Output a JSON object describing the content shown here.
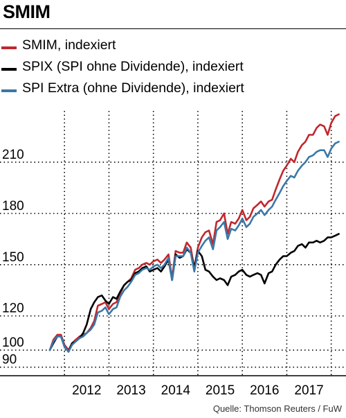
{
  "title": "SMIM",
  "source": "Quelle: Thomson Reuters / FuW",
  "colors": {
    "smim": "#c0272d",
    "spix": "#000000",
    "spi_extra": "#3a78a8",
    "grid": "#000000"
  },
  "chart_data": {
    "type": "line",
    "title": "SMIM",
    "xlabel": "",
    "ylabel": "",
    "grid": "dotted",
    "legend_position": "top",
    "xlim": [
      2011.0,
      2017.6
    ],
    "ylim": [
      85,
      240
    ],
    "x_ticks": [
      {
        "value": 2011.83,
        "label": "2012"
      },
      {
        "value": 2012.83,
        "label": "2013"
      },
      {
        "value": 2013.83,
        "label": "2014"
      },
      {
        "value": 2014.83,
        "label": "2015"
      },
      {
        "value": 2015.83,
        "label": "2016"
      },
      {
        "value": 2016.83,
        "label": "2017"
      }
    ],
    "x_gridlines": [
      2011.33,
      2012.33,
      2013.33,
      2014.33,
      2015.33,
      2016.33,
      2017.33
    ],
    "y_ticks": [
      90,
      100,
      120,
      150,
      180,
      210
    ],
    "x": [
      2011.0,
      2011.08,
      2011.17,
      2011.25,
      2011.33,
      2011.42,
      2011.5,
      2011.58,
      2011.67,
      2011.75,
      2011.83,
      2011.92,
      2012.0,
      2012.08,
      2012.17,
      2012.25,
      2012.33,
      2012.42,
      2012.5,
      2012.58,
      2012.67,
      2012.75,
      2012.83,
      2012.92,
      2013.0,
      2013.08,
      2013.17,
      2013.25,
      2013.33,
      2013.42,
      2013.5,
      2013.58,
      2013.67,
      2013.75,
      2013.83,
      2013.92,
      2014.0,
      2014.08,
      2014.17,
      2014.25,
      2014.33,
      2014.42,
      2014.5,
      2014.58,
      2014.67,
      2014.75,
      2014.83,
      2014.92,
      2015.0,
      2015.08,
      2015.17,
      2015.25,
      2015.33,
      2015.42,
      2015.5,
      2015.58,
      2015.67,
      2015.75,
      2015.83,
      2015.92,
      2016.0,
      2016.08,
      2016.17,
      2016.25,
      2016.33,
      2016.42,
      2016.5,
      2016.58,
      2016.67,
      2016.75,
      2016.83,
      2016.92,
      2017.0,
      2017.08,
      2017.17,
      2017.25,
      2017.33,
      2017.42,
      2017.5
    ],
    "series": [
      {
        "name": "SMIM, indexiert",
        "color_key": "smim",
        "values": [
          100,
          106,
          109,
          109,
          103,
          100,
          104,
          106,
          108,
          109,
          110,
          113,
          117,
          126,
          127,
          128,
          124,
          127,
          128,
          133,
          138,
          140,
          142,
          147,
          148,
          150,
          151,
          150,
          152,
          153,
          151,
          153,
          156,
          142,
          158,
          157,
          157,
          163,
          160,
          148,
          160,
          166,
          169,
          170,
          162,
          175,
          176,
          180,
          168,
          175,
          174,
          177,
          182,
          176,
          178,
          183,
          185,
          187,
          184,
          187,
          188,
          194,
          200,
          205,
          208,
          212,
          210,
          216,
          220,
          222,
          226,
          226,
          230,
          232,
          231,
          226,
          233,
          237,
          238
        ]
      },
      {
        "name": "SPIX (SPI ohne Dividende), indexiert",
        "color_key": "spix",
        "values": [
          100,
          104,
          108,
          108,
          102,
          99,
          104,
          105,
          107,
          110,
          115,
          124,
          128,
          131,
          132,
          129,
          127,
          131,
          130,
          134,
          138,
          140,
          141,
          145,
          146,
          148,
          149,
          146,
          147,
          148,
          146,
          149,
          153,
          141,
          156,
          154,
          155,
          159,
          157,
          148,
          158,
          155,
          147,
          146,
          143,
          141,
          142,
          141,
          138,
          143,
          144,
          146,
          147,
          144,
          143,
          144,
          145,
          144,
          139,
          145,
          146,
          150,
          153,
          155,
          155,
          157,
          158,
          161,
          162,
          160,
          163,
          163,
          164,
          163,
          164,
          166,
          166,
          167,
          168
        ]
      },
      {
        "name": "SPI Extra (ohne Dividende), indexiert",
        "color_key": "spi_extra",
        "values": [
          100,
          105,
          108,
          108,
          102,
          99,
          103,
          105,
          107,
          108,
          110,
          112,
          115,
          122,
          123,
          125,
          121,
          124,
          125,
          131,
          135,
          137,
          140,
          144,
          145,
          147,
          148,
          147,
          149,
          150,
          148,
          150,
          154,
          141,
          155,
          155,
          155,
          160,
          157,
          146,
          157,
          161,
          164,
          166,
          159,
          170,
          172,
          175,
          165,
          171,
          170,
          173,
          177,
          172,
          174,
          178,
          180,
          182,
          179,
          182,
          184,
          188,
          192,
          196,
          199,
          202,
          201,
          205,
          208,
          210,
          213,
          214,
          216,
          217,
          217,
          213,
          218,
          221,
          222
        ]
      }
    ]
  }
}
